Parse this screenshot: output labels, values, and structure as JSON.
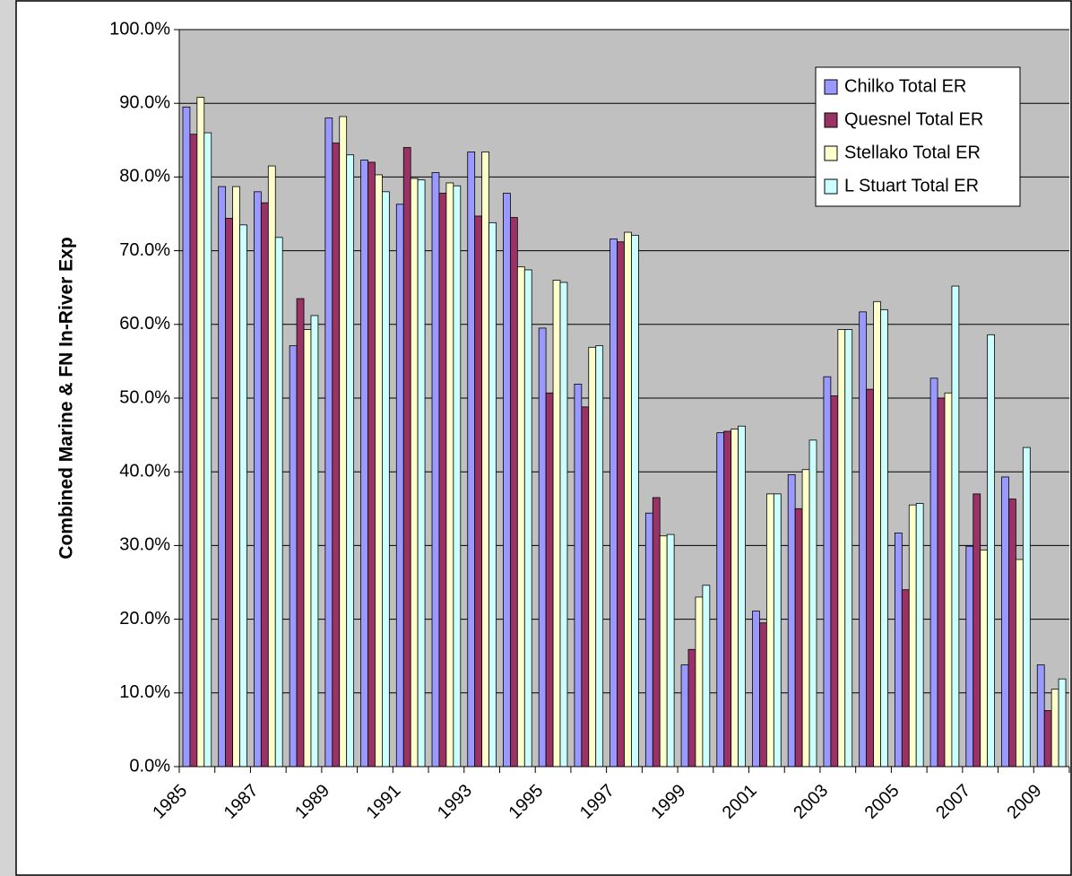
{
  "chart_data": {
    "type": "bar",
    "y_label": "Combined Marine & FN In-River Exp",
    "categories": [
      "1985",
      null,
      "1987",
      null,
      "1989",
      null,
      "1991",
      null,
      "1993",
      null,
      "1995",
      null,
      "1997",
      null,
      "1999",
      null,
      "2001",
      null,
      "2003",
      null,
      "2005",
      null,
      "2007",
      null,
      "2009"
    ],
    "series": [
      {
        "name": "Chilko Total ER",
        "color": "#9999ff",
        "values": [
          89.5,
          78.7,
          78.0,
          57.1,
          88.0,
          82.3,
          76.3,
          80.6,
          83.4,
          77.8,
          59.5,
          51.9,
          71.6,
          34.4,
          13.8,
          45.3,
          21.1,
          39.6,
          52.9,
          61.7,
          31.7,
          52.7,
          29.9,
          39.3,
          13.8
        ]
      },
      {
        "name": "Quesnel Total ER",
        "color": "#993366",
        "values": [
          85.8,
          74.4,
          76.5,
          63.5,
          84.6,
          82.0,
          84.0,
          77.8,
          74.7,
          74.5,
          50.7,
          48.8,
          71.2,
          36.5,
          15.9,
          45.5,
          19.5,
          35.0,
          50.3,
          51.2,
          24.0,
          50.0,
          37.0,
          36.3,
          7.6
        ]
      },
      {
        "name": "Stellako Total ER",
        "color": "#ffffcc",
        "values": [
          90.8,
          78.7,
          81.5,
          59.3,
          88.2,
          80.3,
          79.8,
          79.2,
          83.4,
          67.8,
          66.0,
          56.9,
          72.5,
          31.3,
          23.0,
          45.8,
          37.0,
          40.3,
          59.3,
          63.1,
          35.5,
          50.7,
          29.4,
          28.1,
          10.5
        ]
      },
      {
        "name": "L Stuart Total ER",
        "color": "#ccffff",
        "values": [
          86.0,
          73.5,
          71.8,
          61.2,
          83.0,
          78.0,
          79.6,
          78.8,
          73.8,
          67.4,
          65.7,
          57.1,
          72.1,
          31.5,
          24.6,
          46.2,
          37.0,
          44.3,
          59.3,
          62.0,
          35.7,
          65.2,
          58.6,
          43.3,
          11.9
        ]
      }
    ],
    "ylim": [
      0,
      100
    ],
    "yticks": [
      {
        "value": 0,
        "label": "0.0%"
      },
      {
        "value": 10,
        "label": "10.0%"
      },
      {
        "value": 20,
        "label": "20.0%"
      },
      {
        "value": 30,
        "label": "30.0%"
      },
      {
        "value": 40,
        "label": "40.0%"
      },
      {
        "value": 50,
        "label": "50.0%"
      },
      {
        "value": 60,
        "label": "60.0%"
      },
      {
        "value": 70,
        "label": "70.0%"
      },
      {
        "value": 80,
        "label": "80.0%"
      },
      {
        "value": 90,
        "label": "90.0%"
      },
      {
        "value": 100,
        "label": "100.0%"
      }
    ],
    "grid": true,
    "plot_background": "#c0c0c0",
    "legend": "top-right"
  }
}
